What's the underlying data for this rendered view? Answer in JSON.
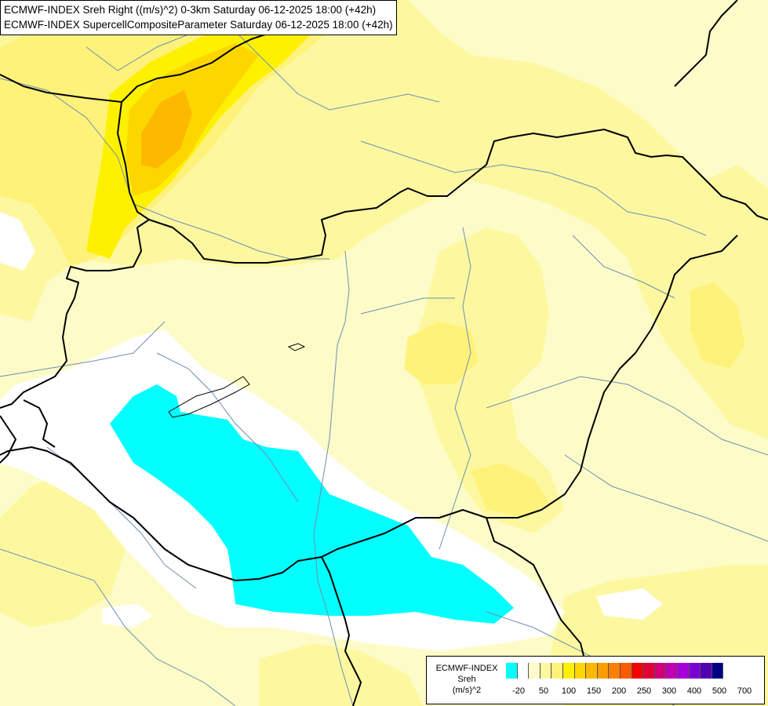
{
  "header": {
    "line1": "ECMWF-INDEX Sreh Right ((m/s)^2) 0-3km Saturday 06-12-2025 18:00 (+42h)",
    "line2": "ECMWF-INDEX SupercellCompositeParameter Saturday 06-12-2025 18:00 (+42h)"
  },
  "legend": {
    "title1": "ECMWF-INDEX",
    "title2": "Sreh",
    "title3": "(m/s)^2",
    "colors": [
      "#00ffff",
      "#ffffff",
      "#fdfcc8",
      "#fdf8a0",
      "#fff27a",
      "#fef100",
      "#fdd600",
      "#fdb800",
      "#fd9c00",
      "#fe7f00",
      "#fe5b00",
      "#f50000",
      "#e10035",
      "#d40078",
      "#c000b5",
      "#a600d8",
      "#7a00d4",
      "#5000b0",
      "#000080"
    ],
    "ticks": [
      "-20",
      "50",
      "100",
      "150",
      "200",
      "250",
      "300",
      "400",
      "500",
      "700"
    ]
  }
}
